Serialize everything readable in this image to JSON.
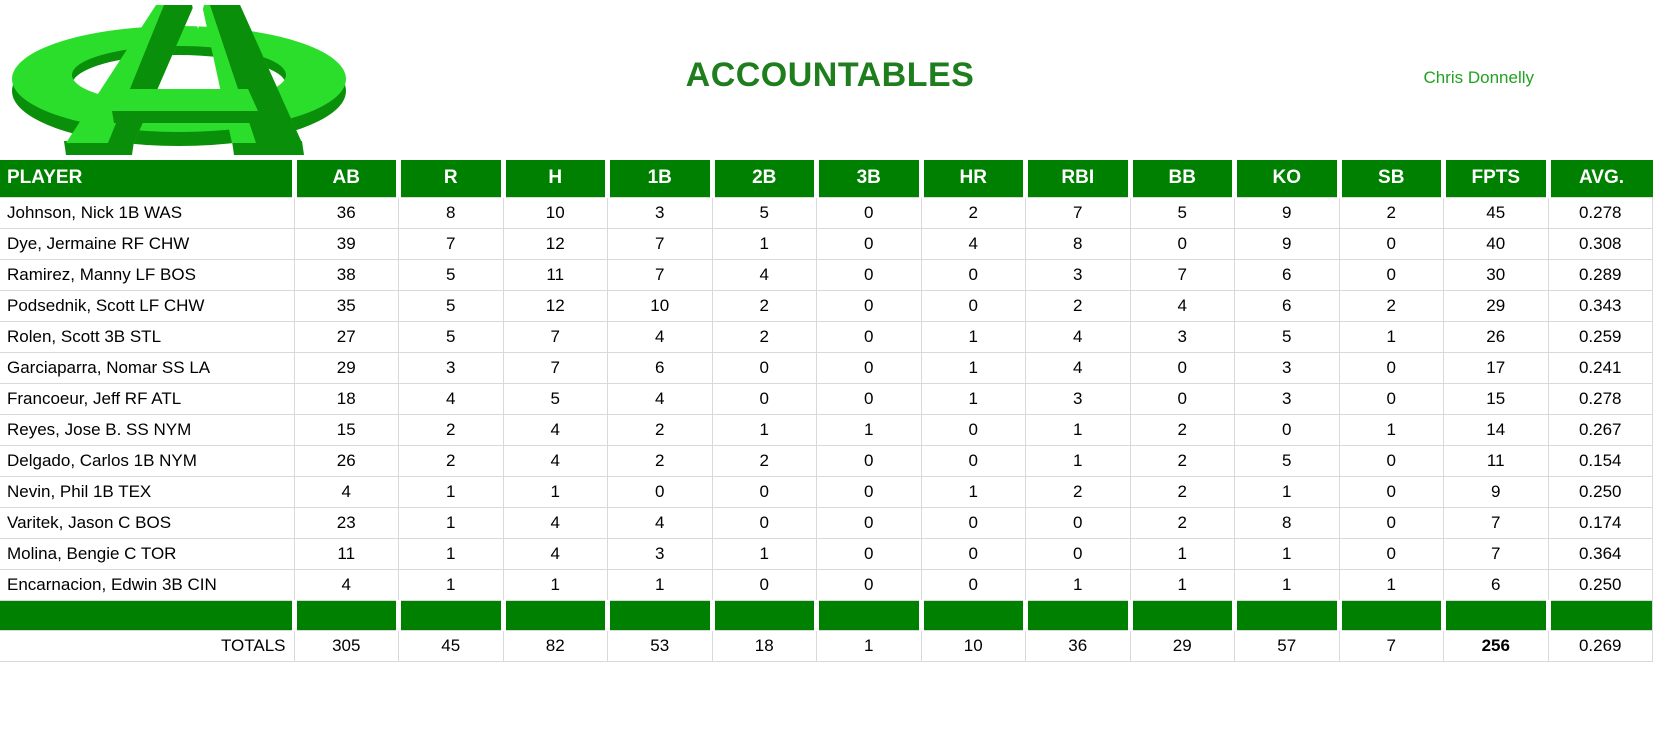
{
  "header": {
    "title": "ACCOUNTABLES",
    "owner": "Chris Donnelly",
    "logo": "3d-green-dollar-A-logo"
  },
  "colors": {
    "header_green": "#008000",
    "title_green": "#1e7e1e",
    "owner_green": "#21a121",
    "grid_gray": "#d9d9d9",
    "logo_bright": "#2bde2b",
    "logo_dark": "#0a8f0a"
  },
  "table": {
    "columns": [
      "PLAYER",
      "AB",
      "R",
      "H",
      "1B",
      "2B",
      "3B",
      "HR",
      "RBI",
      "BB",
      "KO",
      "SB",
      "FPTS",
      "AVG."
    ],
    "rows": [
      [
        "Johnson, Nick 1B WAS",
        36,
        8,
        10,
        3,
        5,
        0,
        2,
        7,
        5,
        9,
        2,
        45,
        "0.278"
      ],
      [
        "Dye, Jermaine RF CHW",
        39,
        7,
        12,
        7,
        1,
        0,
        4,
        8,
        0,
        9,
        0,
        40,
        "0.308"
      ],
      [
        "Ramirez, Manny LF BOS",
        38,
        5,
        11,
        7,
        4,
        0,
        0,
        3,
        7,
        6,
        0,
        30,
        "0.289"
      ],
      [
        "Podsednik, Scott LF CHW",
        35,
        5,
        12,
        10,
        2,
        0,
        0,
        2,
        4,
        6,
        2,
        29,
        "0.343"
      ],
      [
        "Rolen, Scott 3B STL",
        27,
        5,
        7,
        4,
        2,
        0,
        1,
        4,
        3,
        5,
        1,
        26,
        "0.259"
      ],
      [
        "Garciaparra, Nomar SS LA",
        29,
        3,
        7,
        6,
        0,
        0,
        1,
        4,
        0,
        3,
        0,
        17,
        "0.241"
      ],
      [
        "Francoeur, Jeff RF ATL",
        18,
        4,
        5,
        4,
        0,
        0,
        1,
        3,
        0,
        3,
        0,
        15,
        "0.278"
      ],
      [
        "Reyes, Jose B. SS NYM",
        15,
        2,
        4,
        2,
        1,
        1,
        0,
        1,
        2,
        0,
        1,
        14,
        "0.267"
      ],
      [
        "Delgado, Carlos 1B NYM",
        26,
        2,
        4,
        2,
        2,
        0,
        0,
        1,
        2,
        5,
        0,
        11,
        "0.154"
      ],
      [
        "Nevin, Phil 1B TEX",
        4,
        1,
        1,
        0,
        0,
        0,
        1,
        2,
        2,
        1,
        0,
        9,
        "0.250"
      ],
      [
        "Varitek, Jason C BOS",
        23,
        1,
        4,
        4,
        0,
        0,
        0,
        0,
        2,
        8,
        0,
        7,
        "0.174"
      ],
      [
        "Molina, Bengie C TOR",
        11,
        1,
        4,
        3,
        1,
        0,
        0,
        0,
        1,
        1,
        0,
        7,
        "0.364"
      ],
      [
        "Encarnacion, Edwin 3B CIN",
        4,
        1,
        1,
        1,
        0,
        0,
        0,
        1,
        1,
        1,
        1,
        6,
        "0.250"
      ]
    ],
    "totals_label": "TOTALS",
    "totals": [
      305,
      45,
      82,
      53,
      18,
      1,
      10,
      36,
      29,
      57,
      7,
      256,
      "0.269"
    ]
  }
}
